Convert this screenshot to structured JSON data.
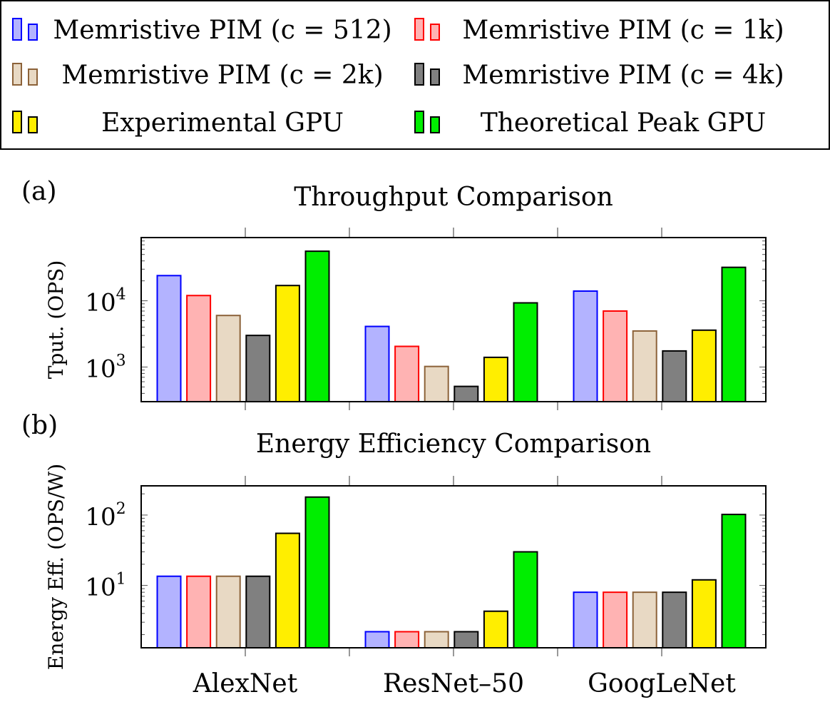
{
  "legend": {
    "entries": [
      {
        "label": "Memristive PIM (c = 512)",
        "fill": "#b3b3ff",
        "stroke": "#0000ff"
      },
      {
        "label": "Memristive PIM (c = 1k)",
        "fill": "#ffb3b3",
        "stroke": "#ff0000"
      },
      {
        "label": "Memristive PIM (c = 2k)",
        "fill": "#e8d9c4",
        "stroke": "#8c6239"
      },
      {
        "label": "Memristive PIM (c = 4k)",
        "fill": "#808080",
        "stroke": "#000000"
      },
      {
        "label": "Experimental GPU",
        "fill": "#ffee00",
        "stroke": "#000000"
      },
      {
        "label": "Theoretical Peak GPU",
        "fill": "#00ee00",
        "stroke": "#000000"
      }
    ]
  },
  "chart_data": [
    {
      "type": "bar",
      "panel_label": "(a)",
      "title": "Throughput Comparison",
      "ylabel": "Tput. (OPS)",
      "yscale": "log",
      "ylim": [
        300,
        90000
      ],
      "yticks": [
        {
          "value": 1000,
          "base": "10",
          "exp": "3"
        },
        {
          "value": 10000,
          "base": "10",
          "exp": "4"
        }
      ],
      "categories": [
        "AlexNet",
        "ResNet–50",
        "GoogLeNet"
      ],
      "series": [
        {
          "name": "Memristive PIM (c = 512)",
          "values": [
            24000,
            4100,
            14000
          ]
        },
        {
          "name": "Memristive PIM (c = 1k)",
          "values": [
            12000,
            2050,
            7000
          ]
        },
        {
          "name": "Memristive PIM (c = 2k)",
          "values": [
            6000,
            1020,
            3500
          ]
        },
        {
          "name": "Memristive PIM (c = 4k)",
          "values": [
            3000,
            510,
            1750
          ]
        },
        {
          "name": "Experimental GPU",
          "values": [
            17000,
            1400,
            3600
          ]
        },
        {
          "name": "Theoretical Peak GPU",
          "values": [
            56000,
            9300,
            32000
          ]
        }
      ]
    },
    {
      "type": "bar",
      "panel_label": "(b)",
      "title": "Energy Efficiency Comparison",
      "ylabel": "Energy Eff. (OPS/W)",
      "yscale": "log",
      "ylim": [
        1.3,
        260
      ],
      "yticks": [
        {
          "value": 10,
          "base": "10",
          "exp": "1"
        },
        {
          "value": 100,
          "base": "10",
          "exp": "2"
        }
      ],
      "categories": [
        "AlexNet",
        "ResNet–50",
        "GoogLeNet"
      ],
      "series": [
        {
          "name": "Memristive PIM (c = 512)",
          "values": [
            13.5,
            2.2,
            8
          ]
        },
        {
          "name": "Memristive PIM (c = 1k)",
          "values": [
            13.5,
            2.2,
            8
          ]
        },
        {
          "name": "Memristive PIM (c = 2k)",
          "values": [
            13.5,
            2.2,
            8
          ]
        },
        {
          "name": "Memristive PIM (c = 4k)",
          "values": [
            13.5,
            2.2,
            8
          ]
        },
        {
          "name": "Experimental GPU",
          "values": [
            55,
            4.3,
            12
          ]
        },
        {
          "name": "Theoretical Peak GPU",
          "values": [
            180,
            30,
            102
          ]
        }
      ]
    }
  ]
}
